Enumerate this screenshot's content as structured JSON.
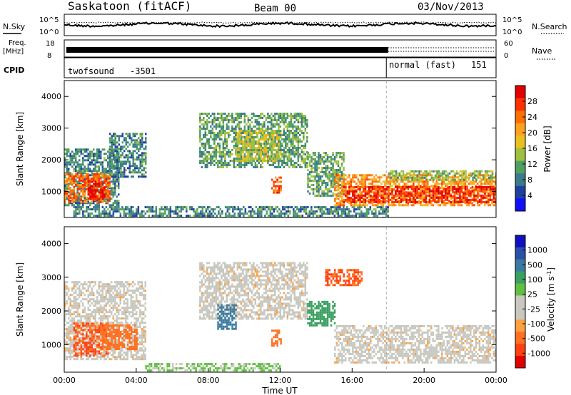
{
  "header": {
    "station": "Saskatoon (fitACF)",
    "beam": "Beam 00",
    "date": "03/Nov/2013"
  },
  "top_panels": {
    "nsky_label": "N.Sky",
    "nsearch_label": "N.Search",
    "noise_ticks": [
      "10^5",
      "10^0"
    ],
    "freq_label": "Freq.",
    "freq_unit": "[MHz]",
    "freq_ticks": [
      "18",
      "8"
    ],
    "nave_label": "Nave",
    "nave_ticks": [
      "60",
      "0"
    ],
    "cpid_label": "CPID",
    "cpid_programs": [
      {
        "name": "twofsound",
        "id": "-3501",
        "start_hour": 0
      },
      {
        "name": "normal (fast)",
        "id": "151",
        "start_hour": 18
      }
    ]
  },
  "power_colorbar": {
    "label": "Power [dB]",
    "ticks": [
      "28",
      "24",
      "20",
      "16",
      "12",
      "8",
      "4"
    ],
    "colors": [
      "#e00000",
      "#ff3000",
      "#ff7000",
      "#ffa020",
      "#e8c020",
      "#a0c040",
      "#50a060",
      "#3a7a8a",
      "#2040a0",
      "#1010ff"
    ]
  },
  "velocity_colorbar": {
    "label": "Velocity [m s^-1]",
    "ticks": [
      "1000",
      "500",
      "100",
      "25",
      "-25",
      "-100",
      "-500",
      "-1000"
    ],
    "colors": [
      "#1010c0",
      "#2a50a8",
      "#3a7aa0",
      "#3aa060",
      "#60c040",
      "#c8c8c0",
      "#c8c8c0",
      "#ffa040",
      "#ff7020",
      "#ff4010",
      "#e00000"
    ]
  },
  "chart_data": [
    {
      "type": "heatmap",
      "title": "Power",
      "xlabel": "",
      "ylabel": "Slant Range [km]",
      "ylim": [
        180,
        4500
      ],
      "xlim": [
        0,
        24
      ],
      "yticks": [
        "4000",
        "3000",
        "2000",
        "1000"
      ],
      "regions": [
        {
          "t0": 0.0,
          "t1": 3.0,
          "r0": 600,
          "r1": 2400,
          "power": 8
        },
        {
          "t0": 0.0,
          "t1": 2.5,
          "r0": 700,
          "r1": 1600,
          "power": 22
        },
        {
          "t0": 1.3,
          "t1": 2.2,
          "r0": 800,
          "r1": 1400,
          "power": 28
        },
        {
          "t0": 2.5,
          "t1": 4.5,
          "r0": 1500,
          "r1": 2900,
          "power": 8
        },
        {
          "t0": 0.5,
          "t1": 18.0,
          "r0": 200,
          "r1": 600,
          "power": 8
        },
        {
          "t0": 7.5,
          "t1": 13.5,
          "r0": 1800,
          "r1": 3500,
          "power": 10
        },
        {
          "t0": 9.5,
          "t1": 12.0,
          "r0": 2000,
          "r1": 3000,
          "power": 14
        },
        {
          "t0": 11.5,
          "t1": 12.0,
          "r0": 1000,
          "r1": 1500,
          "power": 24
        },
        {
          "t0": 13.5,
          "t1": 15.5,
          "r0": 900,
          "r1": 2300,
          "power": 10
        },
        {
          "t0": 15.0,
          "t1": 24.0,
          "r0": 600,
          "r1": 1600,
          "power": 20
        },
        {
          "t0": 15.5,
          "t1": 24.0,
          "r0": 700,
          "r1": 1200,
          "power": 26
        },
        {
          "t0": 18.0,
          "t1": 24.0,
          "r0": 1400,
          "r1": 1700,
          "power": 12
        }
      ]
    },
    {
      "type": "heatmap",
      "title": "Velocity",
      "xlabel": "Time UT",
      "ylabel": "Slant Range [km]",
      "ylim": [
        180,
        4500
      ],
      "xlim": [
        0,
        24
      ],
      "yticks": [
        "4000",
        "3000",
        "2000",
        "1000"
      ],
      "xticks": [
        "00:00",
        "04:00",
        "08:00",
        "12:00",
        "16:00",
        "20:00",
        "00:00"
      ],
      "regions": [
        {
          "t0": 0.0,
          "t1": 4.5,
          "r0": 600,
          "r1": 2900,
          "velocity": 0
        },
        {
          "t0": 0.5,
          "t1": 2.5,
          "r0": 700,
          "r1": 1700,
          "velocity": -300
        },
        {
          "t0": 2.0,
          "t1": 4.0,
          "r0": 900,
          "r1": 1600,
          "velocity": -150
        },
        {
          "t0": 4.5,
          "t1": 12.0,
          "r0": 200,
          "r1": 500,
          "velocity": 60
        },
        {
          "t0": 7.5,
          "t1": 13.5,
          "r0": 1800,
          "r1": 3500,
          "velocity": 0
        },
        {
          "t0": 8.5,
          "t1": 9.5,
          "r0": 1500,
          "r1": 2200,
          "velocity": 300
        },
        {
          "t0": 11.5,
          "t1": 12.0,
          "r0": 1000,
          "r1": 1500,
          "velocity": -200
        },
        {
          "t0": 14.5,
          "t1": 16.5,
          "r0": 2800,
          "r1": 3300,
          "velocity": -300
        },
        {
          "t0": 13.5,
          "t1": 15.0,
          "r0": 1600,
          "r1": 2300,
          "velocity": 150
        },
        {
          "t0": 15.0,
          "t1": 24.0,
          "r0": 500,
          "r1": 1600,
          "velocity": 0
        }
      ]
    }
  ]
}
